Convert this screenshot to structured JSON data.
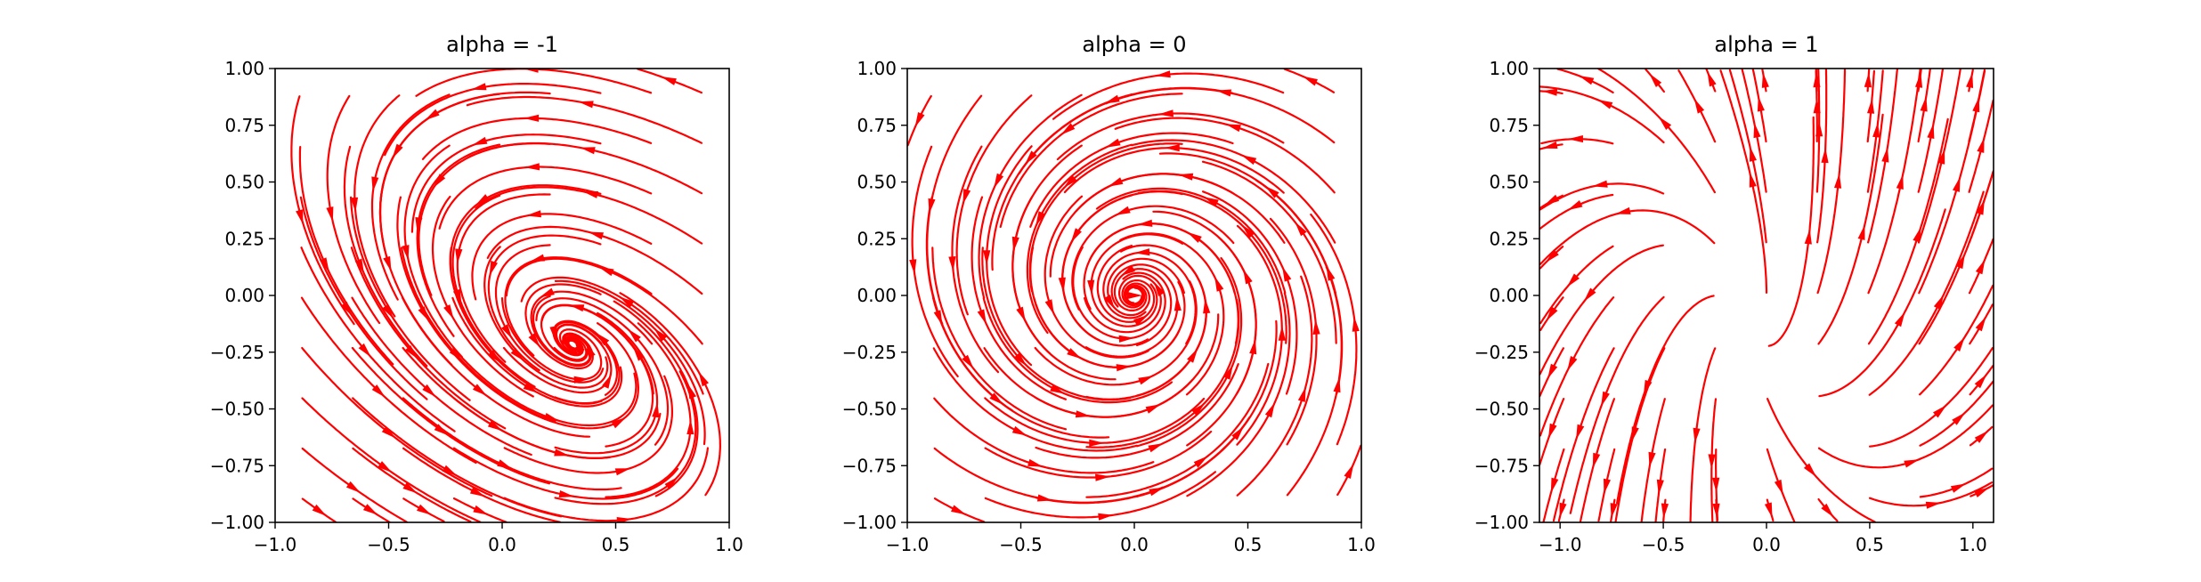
{
  "chart_data": [
    {
      "type": "streamplot",
      "title": "alpha = -1",
      "alpha": -1,
      "xlim": [
        -1.0,
        1.0
      ],
      "ylim": [
        -1.0,
        1.0
      ],
      "x_ticks": [
        "−1.0",
        "−0.5",
        "0.0",
        "0.5",
        "1.0"
      ],
      "x_tick_values": [
        -1.0,
        -0.5,
        0.0,
        0.5,
        1.0
      ],
      "y_ticks": [
        "−1.00",
        "−0.75",
        "−0.50",
        "−0.25",
        "0.00",
        "0.25",
        "0.50",
        "0.75",
        "1.00"
      ],
      "y_tick_values": [
        -1.0,
        -0.75,
        -0.5,
        -0.25,
        0.0,
        0.25,
        0.5,
        0.75,
        1.0
      ],
      "grid": false,
      "color": "#ff0000"
    },
    {
      "type": "streamplot",
      "title": "alpha = 0",
      "alpha": 0,
      "xlim": [
        -1.0,
        1.0
      ],
      "ylim": [
        -1.0,
        1.0
      ],
      "x_ticks": [
        "−1.0",
        "−0.5",
        "0.0",
        "0.5",
        "1.0"
      ],
      "x_tick_values": [
        -1.0,
        -0.5,
        0.0,
        0.5,
        1.0
      ],
      "y_ticks": [
        "−1.00",
        "−0.75",
        "−0.50",
        "−0.25",
        "0.00",
        "0.25",
        "0.50",
        "0.75",
        "1.00"
      ],
      "y_tick_values": [
        -1.0,
        -0.75,
        -0.5,
        -0.25,
        0.0,
        0.25,
        0.5,
        0.75,
        1.0
      ],
      "grid": false,
      "color": "#ff0000"
    },
    {
      "type": "streamplot",
      "title": "alpha = 1",
      "alpha": 1,
      "xlim": [
        -1.1,
        1.1
      ],
      "ylim": [
        -1.0,
        1.0
      ],
      "x_ticks": [
        "−1.0",
        "−0.5",
        "0.0",
        "0.5",
        "1.0"
      ],
      "x_tick_values": [
        -1.0,
        -0.5,
        0.0,
        0.5,
        1.0
      ],
      "y_ticks": [
        "−1.00",
        "−0.75",
        "−0.50",
        "−0.25",
        "0.00",
        "0.25",
        "0.50",
        "0.75",
        "1.00"
      ],
      "y_tick_values": [
        -1.0,
        -0.75,
        -0.5,
        -0.25,
        0.0,
        0.25,
        0.5,
        0.75,
        1.0
      ],
      "grid": false,
      "color": "#ff0000"
    }
  ]
}
